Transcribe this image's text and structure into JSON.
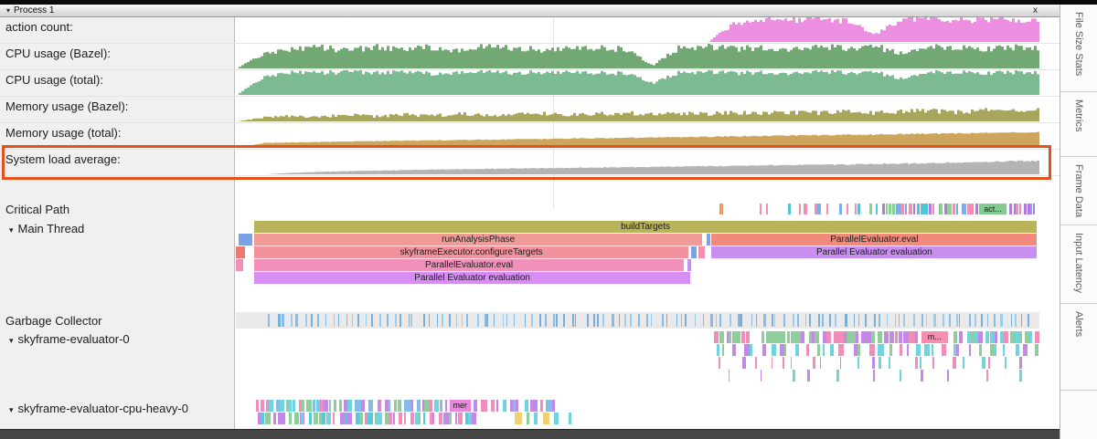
{
  "icons": {
    "caret_down": "▾"
  },
  "header": {
    "process_label": "Process 1",
    "close_label": "x"
  },
  "counter_rows": [
    {
      "label": "action count:",
      "color": "#ec8fe0",
      "noise": 0.16,
      "values": [
        0,
        0,
        0,
        0,
        0,
        0,
        0,
        0,
        0,
        0,
        0,
        0,
        0,
        0,
        0,
        0,
        0,
        0,
        80,
        90,
        86,
        94,
        88,
        30,
        92,
        96,
        88,
        93,
        90,
        91
      ]
    },
    {
      "label": "CPU usage (Bazel):",
      "color": "#72a873",
      "noise": 0.16,
      "values": [
        0,
        62,
        78,
        85,
        72,
        88,
        80,
        86,
        74,
        90,
        82,
        76,
        88,
        84,
        78,
        12,
        86,
        90,
        80,
        86,
        76,
        88,
        82,
        90,
        60,
        84,
        88,
        78,
        86,
        82
      ]
    },
    {
      "label": "CPU usage (total):",
      "color": "#7cba92",
      "noise": 0.1,
      "values": [
        0,
        75,
        92,
        88,
        95,
        90,
        96,
        86,
        92,
        95,
        88,
        93,
        96,
        90,
        88,
        48,
        92,
        95,
        88,
        93,
        86,
        95,
        90,
        93,
        65,
        90,
        94,
        88,
        92,
        90
      ]
    },
    {
      "label": "Memory usage (Bazel):",
      "color": "#a8a65c",
      "noise": 0.28,
      "values": [
        0,
        16,
        22,
        18,
        26,
        20,
        28,
        22,
        30,
        24,
        28,
        32,
        26,
        30,
        34,
        28,
        34,
        30,
        36,
        32,
        36,
        34,
        40,
        36,
        40,
        44,
        38,
        44,
        42,
        46
      ]
    },
    {
      "label": "Memory usage (total):",
      "color": "#cda55c",
      "noise": 0.04,
      "values": [
        0,
        20,
        22,
        24,
        26,
        27,
        29,
        30,
        32,
        33,
        35,
        36,
        38,
        39,
        41,
        42,
        44,
        45,
        47,
        48,
        50,
        51,
        53,
        54,
        56,
        57,
        59,
        60,
        62,
        63
      ]
    },
    {
      "label": "System load average:",
      "color": "#b4b4b4",
      "noise": 0.05,
      "values": [
        0,
        0,
        6,
        10,
        13,
        15,
        17,
        19,
        21,
        22,
        24,
        25,
        26,
        28,
        29,
        30,
        32,
        33,
        34,
        36,
        37,
        39,
        40,
        42,
        44,
        46,
        48,
        50,
        54,
        56
      ]
    }
  ],
  "tracks": {
    "critical_path": {
      "label": "Critical Path",
      "seed": 5,
      "groups": [
        {
          "from": 0.6,
          "to": 0.603,
          "count": 1,
          "wmin": 3,
          "wmax": 4,
          "palette": [
            "#f09a66"
          ]
        },
        {
          "from": 0.648,
          "to": 0.662,
          "count": 2,
          "wmin": 2,
          "wmax": 3,
          "palette": [
            "#7bade8",
            "#f48fb1"
          ]
        },
        {
          "from": 0.685,
          "to": 0.8,
          "count": 12,
          "wmin": 2,
          "wmax": 4,
          "palette": [
            "#7bade8",
            "#f48fb1",
            "#52c5d8",
            "#8ecf96"
          ]
        },
        {
          "from": 0.802,
          "to": 0.922,
          "count": 26,
          "wmin": 2,
          "wmax": 5,
          "palette": [
            "#7bade8",
            "#f48fb1",
            "#52c5d8",
            "#b579dd",
            "#8ecf96"
          ]
        },
        {
          "from": 0.962,
          "to": 0.996,
          "count": 8,
          "wmin": 2,
          "wmax": 4,
          "palette": [
            "#7bade8",
            "#f48fb1",
            "#b579dd"
          ]
        }
      ],
      "slices": [
        {
          "x": 0.925,
          "w": 0.034,
          "label": "act...",
          "color": "#82cb90"
        }
      ]
    },
    "main_thread": {
      "label": "Main Thread",
      "rows": [
        [
          {
            "x": 0.0227,
            "w": 0.974,
            "label": "buildTargets",
            "color": "#b9b45c"
          }
        ],
        [
          {
            "x": 0.003,
            "w": 0.017,
            "color": "#7ba3e3"
          },
          {
            "x": 0.0227,
            "w": 0.558,
            "label": "runAnalysisPhase",
            "color": "#ef9a97"
          },
          {
            "x": 0.586,
            "w": 0.005,
            "color": "#7ba3e3"
          },
          {
            "x": 0.592,
            "w": 0.405,
            "label": "ParallelEvaluator.eval",
            "color": "#f28a7b"
          }
        ],
        [
          {
            "x": 0.0,
            "w": 0.011,
            "color": "#e97a74"
          },
          {
            "x": 0.0227,
            "w": 0.541,
            "label": "skyframeExecutor.configureTargets",
            "color": "#f2929c"
          },
          {
            "x": 0.567,
            "w": 0.006,
            "color": "#7ba3e3"
          },
          {
            "x": 0.576,
            "w": 0.008,
            "color": "#f48fb1"
          },
          {
            "x": 0.592,
            "w": 0.405,
            "label": "Parallel Evaluator evaluation",
            "color": "#c88ef0"
          }
        ],
        [
          {
            "x": 0.0,
            "w": 0.009,
            "color": "#f191ba"
          },
          {
            "x": 0.0227,
            "w": 0.535,
            "label": "ParallelEvaluator.eval",
            "color": "#f191ba"
          },
          {
            "x": 0.562,
            "w": 0.005,
            "color": "#c88ef0"
          }
        ],
        [
          {
            "x": 0.0227,
            "w": 0.543,
            "label": "Parallel Evaluator evaluation",
            "color": "#d78df2"
          }
        ]
      ]
    },
    "garbage_collector": {
      "label": "Garbage Collector",
      "seed": 9,
      "groups": [
        {
          "from": 0.038,
          "to": 0.992,
          "count": 112,
          "wmin": 1,
          "wmax": 2.5,
          "palette": [
            "#86bde8",
            "#9dcdee",
            "#76b1de"
          ]
        }
      ]
    },
    "evaluator0": {
      "label": "skyframe-evaluator-0",
      "rows": [
        {
          "seed": 13,
          "groups": [
            {
              "from": 0.592,
              "to": 0.636,
              "count": 9,
              "wmin": 3,
              "wmax": 7,
              "palette": [
                "#f28cb8",
                "#8fce9a",
                "#c488e8"
              ]
            },
            {
              "from": 0.652,
              "to": 0.802,
              "count": 24,
              "wmin": 3,
              "wmax": 8,
              "palette": [
                "#8fce9a",
                "#8fce9a",
                "#f28cb8",
                "#c488e8"
              ]
            },
            {
              "from": 0.806,
              "to": 0.85,
              "count": 8,
              "wmin": 3,
              "wmax": 6,
              "palette": [
                "#f28cb8",
                "#8fce9a",
                "#c488e8"
              ]
            },
            {
              "from": 0.892,
              "to": 0.996,
              "count": 17,
              "wmin": 3,
              "wmax": 7,
              "palette": [
                "#8fce9a",
                "#f28cb8",
                "#c488e8",
                "#6fd4e0"
              ]
            }
          ],
          "slices": [
            {
              "x": 0.853,
              "w": 0.033,
              "label": "m...",
              "color": "#f48fb1"
            }
          ]
        },
        {
          "seed": 17,
          "groups": [
            {
              "from": 0.592,
              "to": 0.996,
              "count": 36,
              "wmin": 2,
              "wmax": 7,
              "palette": [
                "#f28cb8",
                "#c488e8",
                "#6fd4e0",
                "#8fce9a"
              ]
            }
          ]
        },
        {
          "seed": 19,
          "groups": [
            {
              "from": 0.6,
              "to": 0.99,
              "count": 22,
              "wmin": 1,
              "wmax": 4,
              "palette": [
                "#c488e8",
                "#f28cb8",
                "#6fd4e0"
              ]
            }
          ]
        },
        {
          "seed": 23,
          "groups": [
            {
              "from": 0.61,
              "to": 0.98,
              "count": 11,
              "wmin": 1,
              "wmax": 3,
              "palette": [
                "#c488e8",
                "#f28cb8",
                "#6fd4e0"
              ]
            }
          ]
        }
      ]
    },
    "cpu_heavy": {
      "label": "skyframe-evaluator-cpu-heavy-0",
      "rows": [
        {
          "seed": 29,
          "groups": [
            {
              "from": 0.024,
              "to": 0.262,
              "count": 42,
              "wmin": 2,
              "wmax": 6,
              "palette": [
                "#6fd4e0",
                "#f08cc0",
                "#c488e8",
                "#8fce9a",
                "#86bde8"
              ]
            },
            {
              "from": 0.296,
              "to": 0.4,
              "count": 16,
              "wmin": 2,
              "wmax": 5,
              "palette": [
                "#6fd4e0",
                "#f08cc0",
                "#c488e8",
                "#86bde8"
              ]
            }
          ],
          "slices": [
            {
              "x": 0.266,
              "w": 0.026,
              "label": "mer",
              "color": "#ea84dc"
            }
          ]
        },
        {
          "seed": 31,
          "groups": [
            {
              "from": 0.024,
              "to": 0.3,
              "count": 44,
              "wmin": 2,
              "wmax": 6,
              "palette": [
                "#6fd4e0",
                "#5bc8d8",
                "#f08cc0",
                "#c488e8",
                "#8fce9a"
              ]
            },
            {
              "from": 0.345,
              "to": 0.415,
              "count": 6,
              "wmin": 3,
              "wmax": 8,
              "palette": [
                "#8fce9a",
                "#6fd4e0",
                "#f0d070"
              ]
            }
          ]
        }
      ]
    }
  },
  "sidebar_tabs": [
    "File Size Stats",
    "Metrics",
    "Frame Data",
    "Input Latency",
    "Alerts"
  ]
}
